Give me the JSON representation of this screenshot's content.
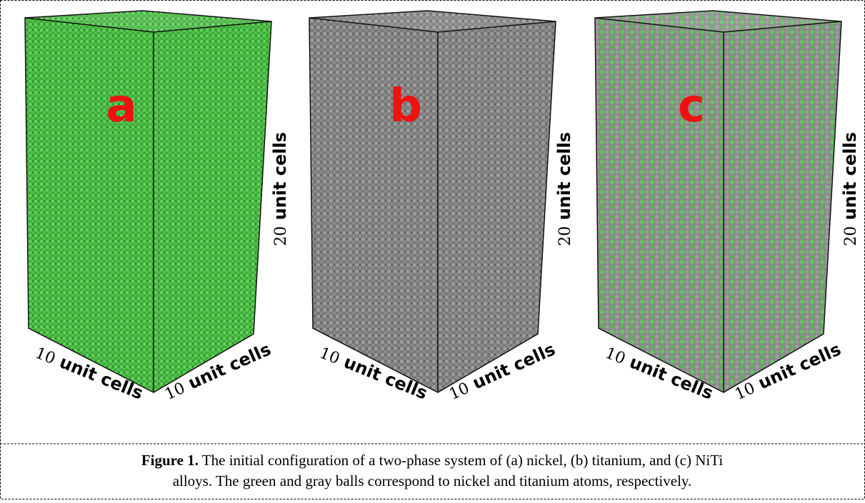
{
  "panels": [
    {
      "label": "a",
      "left_axis": {
        "number": "10",
        "text": "unit cells"
      },
      "right_axis": {
        "number": "10",
        "text": "unit cells"
      },
      "vertical_axis": {
        "number": "20",
        "text": "unit cells"
      }
    },
    {
      "label": "b",
      "left_axis": {
        "number": "10",
        "text": "unit cells"
      },
      "right_axis": {
        "number": "10",
        "text": "unit cells"
      },
      "vertical_axis": {
        "number": "20",
        "text": "unit cells"
      }
    },
    {
      "label": "c",
      "left_axis": {
        "number": "10",
        "text": "unit cells"
      },
      "right_axis": {
        "number": "10",
        "text": "unit cells"
      },
      "vertical_axis": {
        "number": "20",
        "text": "unit cells"
      }
    }
  ],
  "caption": {
    "label": "Figure 1.",
    "lines": [
      "The initial configuration of a two-phase system of (a) nickel, (b) titanium, and (c) NiTi",
      "alloys. The green and gray balls correspond to nickel and titanium atoms, respectively."
    ]
  }
}
